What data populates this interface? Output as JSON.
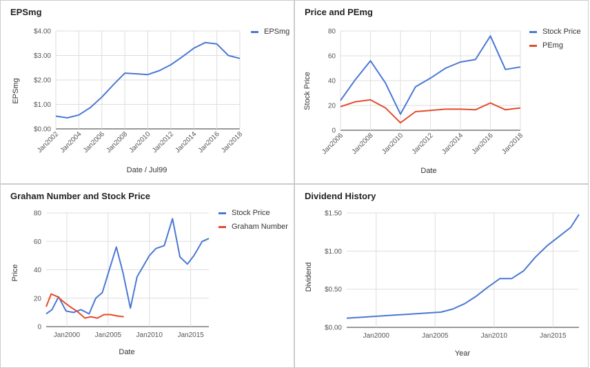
{
  "chart_data": [
    {
      "type": "line",
      "title": "EPSmg",
      "xlabel": "Date / Jul99",
      "ylabel": "EPSmg",
      "x": [
        "2002",
        "2003",
        "2004",
        "2005",
        "2006",
        "2007",
        "2008",
        "2009",
        "2010",
        "2011",
        "2012",
        "2013",
        "2014",
        "2015",
        "2016",
        "2017",
        "2018"
      ],
      "xticks": [
        "Jan2002",
        "Jan2004",
        "Jan2006",
        "Jan2008",
        "Jan2010",
        "Jan2012",
        "Jan2014",
        "Jan2016",
        "Jan2018"
      ],
      "yticks": [
        "$0.00",
        "$1.00",
        "$2.00",
        "$3.00",
        "$4.00"
      ],
      "ylim": [
        0,
        4
      ],
      "series": [
        {
          "name": "EPSmg",
          "color": "#4a77d4",
          "values": [
            0.52,
            0.45,
            0.57,
            0.87,
            1.3,
            1.8,
            2.28,
            2.25,
            2.22,
            2.38,
            2.62,
            2.95,
            3.3,
            3.53,
            3.47,
            3.0,
            2.88
          ]
        }
      ],
      "legend": "right",
      "grid": true
    },
    {
      "type": "line",
      "title": "Price and PEmg",
      "xlabel": "Date",
      "ylabel": "Stock Price",
      "x": [
        "2006",
        "2007",
        "2008",
        "2009",
        "2010",
        "2011",
        "2012",
        "2013",
        "2014",
        "2015",
        "2016",
        "2017",
        "2018"
      ],
      "xticks": [
        "Jan2006",
        "Jan2008",
        "Jan2010",
        "Jan2012",
        "Jan2014",
        "Jan2016",
        "Jan2018"
      ],
      "yticks": [
        "0",
        "20",
        "40",
        "60",
        "80"
      ],
      "ylim": [
        0,
        80
      ],
      "series": [
        {
          "name": "Stock Price",
          "color": "#4a77d4",
          "values": [
            24,
            41,
            56,
            38,
            13,
            35,
            42,
            50,
            55,
            57,
            76,
            49,
            51
          ]
        },
        {
          "name": "PEmg",
          "color": "#e24b2a",
          "values": [
            19,
            23,
            24.5,
            18,
            6,
            15,
            16,
            17,
            17,
            16.5,
            22,
            16.5,
            18
          ]
        }
      ],
      "legend": "right",
      "grid": true
    },
    {
      "type": "line",
      "title": "Graham Number and Stock Price",
      "xlabel": "Date",
      "ylabel": "Price",
      "xlim": [
        1997.5,
        2017.2
      ],
      "xticks": [
        "Jan2000",
        "Jan2005",
        "Jan2010",
        "Jan2015"
      ],
      "xtick_values": [
        2000,
        2005,
        2010,
        2015
      ],
      "yticks": [
        "0",
        "20",
        "40",
        "60",
        "80"
      ],
      "ylim": [
        0,
        80
      ],
      "series": [
        {
          "name": "Stock Price",
          "color": "#4a77d4",
          "x": [
            1997.5,
            1998.2,
            1999,
            1999.9,
            2000.8,
            2001.7,
            2002.7,
            2003.5,
            2004.3,
            2005.2,
            2006,
            2006.8,
            2007.7,
            2008.5,
            2009.2,
            2010,
            2010.8,
            2011.8,
            2012.8,
            2013.7,
            2014.6,
            2015.4,
            2016.4,
            2017.2
          ],
          "values": [
            9,
            12,
            21,
            11,
            10,
            12,
            9,
            20,
            24,
            41,
            56,
            38,
            13,
            35,
            42,
            50,
            55,
            57,
            76,
            49,
            44,
            50,
            60,
            62
          ]
        },
        {
          "name": "Graham Number",
          "color": "#e24b2a",
          "x": [
            1997.5,
            1998.1,
            1998.9,
            1999.7,
            2000.4,
            2001.2,
            2002.2,
            2002.9,
            2003.7,
            2004.5,
            2005.3,
            2006.1,
            2006.9
          ],
          "values": [
            14,
            23,
            21,
            17,
            14,
            11,
            6,
            7,
            6,
            8.5,
            8.5,
            7.5,
            7
          ]
        }
      ],
      "legend": "right",
      "grid": true
    },
    {
      "type": "line",
      "title": "Dividend History",
      "xlabel": "Year",
      "ylabel": "Dividend",
      "xlim": [
        1997.5,
        2017.2
      ],
      "xticks": [
        "Jan2000",
        "Jan2005",
        "Jan2010",
        "Jan2015"
      ],
      "xtick_values": [
        2000,
        2005,
        2010,
        2015
      ],
      "yticks": [
        "$0.00",
        "$0.50",
        "$1.00",
        "$1.50"
      ],
      "ylim": [
        0,
        1.5
      ],
      "series": [
        {
          "name": "Dividend",
          "color": "#4a77d4",
          "x": [
            1997.5,
            1998.5,
            1999.5,
            2000.5,
            2001.5,
            2002.5,
            2003.5,
            2004.5,
            2005.5,
            2006.5,
            2007.5,
            2008.5,
            2009.5,
            2010.5,
            2011.5,
            2012.5,
            2013.5,
            2014.5,
            2015.5,
            2016.5,
            2017.2
          ],
          "values": [
            0.12,
            0.13,
            0.14,
            0.15,
            0.16,
            0.17,
            0.18,
            0.19,
            0.2,
            0.24,
            0.31,
            0.41,
            0.53,
            0.64,
            0.64,
            0.74,
            0.92,
            1.07,
            1.19,
            1.31,
            1.48
          ]
        }
      ],
      "legend": "none",
      "grid": true
    }
  ]
}
